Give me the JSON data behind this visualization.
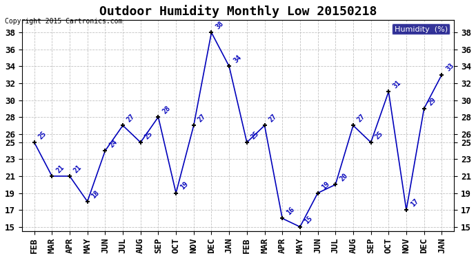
{
  "title": "Outdoor Humidity Monthly Low 20150218",
  "copyright": "Copyright 2015 Cartronics.com",
  "legend_label": "Humidity  (%)",
  "categories": [
    "FEB",
    "MAR",
    "APR",
    "MAY",
    "JUN",
    "JUL",
    "AUG",
    "SEP",
    "OCT",
    "NOV",
    "DEC",
    "JAN",
    "FEB",
    "MAR",
    "APR",
    "MAY",
    "JUN",
    "JUL",
    "AUG",
    "SEP",
    "OCT",
    "NOV",
    "DEC",
    "JAN"
  ],
  "values": [
    25,
    21,
    21,
    18,
    24,
    27,
    25,
    28,
    19,
    27,
    38,
    34,
    25,
    27,
    16,
    15,
    19,
    20,
    27,
    25,
    31,
    17,
    29,
    33
  ],
  "line_color": "#0000bb",
  "marker_color": "#000000",
  "label_color": "#0000bb",
  "bg_color": "#ffffff",
  "grid_color": "#bbbbbb",
  "ylim": [
    14.5,
    39.5
  ],
  "yticks": [
    15,
    17,
    19,
    21,
    23,
    25,
    26,
    28,
    30,
    32,
    34,
    36,
    38
  ],
  "title_fontsize": 13,
  "copyright_fontsize": 7,
  "label_fontsize": 7,
  "tick_fontsize": 9
}
